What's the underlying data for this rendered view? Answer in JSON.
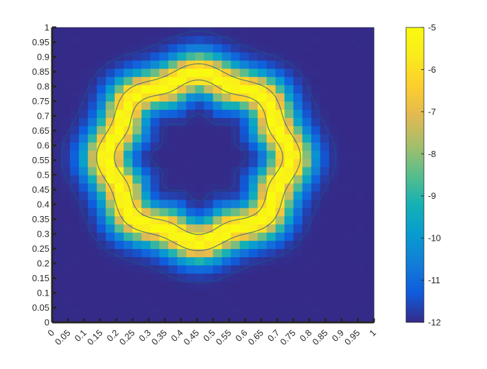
{
  "chart_data": {
    "type": "heatmap",
    "title": "",
    "xlabel": "",
    "ylabel": "",
    "xlim": [
      0,
      1
    ],
    "ylim": [
      0,
      1
    ],
    "x_ticks": [
      0,
      0.05,
      0.1,
      0.15,
      0.2,
      0.25,
      0.3,
      0.35,
      0.4,
      0.45,
      0.5,
      0.55,
      0.6,
      0.65,
      0.7,
      0.75,
      0.8,
      0.85,
      0.9,
      0.95,
      1
    ],
    "x_tick_labels": [
      "0",
      "0.05",
      "0.1",
      "0.15",
      "0.2",
      "0.25",
      "0.3",
      "0.35",
      "0.4",
      "0.45",
      "0.5",
      "0.55",
      "0.6",
      "0.65",
      "0.7",
      "0.75",
      "0.8",
      "0.85",
      "0.9",
      "0.95",
      "1"
    ],
    "y_ticks": [
      0,
      0.05,
      0.1,
      0.15,
      0.2,
      0.25,
      0.3,
      0.35,
      0.4,
      0.45,
      0.5,
      0.55,
      0.6,
      0.65,
      0.7,
      0.75,
      0.8,
      0.85,
      0.9,
      0.95,
      1
    ],
    "y_tick_labels": [
      "0",
      "0.05",
      "0.1",
      "0.15",
      "0.2",
      "0.25",
      "0.3",
      "0.35",
      "0.4",
      "0.45",
      "0.5",
      "0.55",
      "0.6",
      "0.65",
      "0.7",
      "0.75",
      "0.8",
      "0.85",
      "0.9",
      "0.95",
      "1"
    ],
    "colorbar": {
      "min": -12,
      "max": -5,
      "ticks": [
        -5,
        -6,
        -7,
        -8,
        -9,
        -10,
        -11,
        -12
      ],
      "tick_labels": [
        "-5",
        "-6",
        "-7",
        "-8",
        "-9",
        "-10",
        "-11",
        "-12"
      ],
      "colormap": "parula"
    },
    "field": {
      "description_values": "ring-shaped log-magnitude field",
      "center": [
        0.455,
        0.56
      ],
      "ring_radius": 0.275,
      "ring_half_width": 0.085,
      "peak_value": -5,
      "background_value": -12
    },
    "grid": false,
    "colors": {
      "background": "#ffffff",
      "axis": "#262626"
    }
  }
}
